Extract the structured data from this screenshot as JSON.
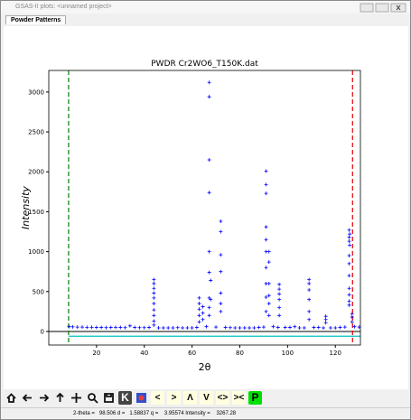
{
  "window": {
    "title": "GSAS-II plots: <unnamed project>",
    "tab": "Powder Patterns",
    "toolbar": [
      "K",
      "<",
      ">",
      "Λ",
      "V",
      "<>",
      "><",
      "P"
    ],
    "status": "2-theta =   98.506 d =   1.58837 q =    3.95574 Intensity =    3267.28"
  },
  "chart_data": {
    "type": "scatter",
    "title": "PWDR Cr2WO6_T150K.dat",
    "xlabel": "2θ",
    "ylabel": "Intensity",
    "xlim": [
      0,
      130.5
    ],
    "ylim": [
      -170,
      3270
    ],
    "xticks": [
      20,
      40,
      60,
      80,
      100,
      120
    ],
    "yticks": [
      0,
      500,
      1000,
      1500,
      2000,
      2500,
      3000
    ],
    "limits": [
      8.3,
      127.2
    ],
    "limit_colors": [
      "#008000",
      "#e00000"
    ],
    "series": [
      {
        "color": "#0000ff",
        "marker": "+",
        "x": [
          8.5,
          10,
          12,
          14,
          16,
          18,
          20,
          22,
          24,
          26,
          28,
          30,
          32,
          34,
          36,
          38,
          40,
          42,
          46,
          48,
          50,
          52,
          54,
          56,
          58,
          60,
          62,
          66,
          70,
          74,
          76,
          78,
          80,
          82,
          84,
          86,
          88,
          90,
          94,
          96,
          99,
          101,
          103,
          105,
          107,
          111,
          113,
          115,
          118,
          120,
          122,
          124,
          128,
          130,
          44,
          44,
          44,
          44,
          44,
          44,
          44,
          44,
          44,
          44,
          63,
          63,
          63,
          63,
          63,
          64.5,
          64.5,
          64.5,
          67.2,
          67.2,
          67.2,
          67.2,
          67.2,
          67.2,
          67.2,
          67.2,
          67.2,
          67.8,
          67.8,
          72,
          72,
          72,
          72,
          72,
          72,
          72,
          91,
          91,
          91,
          91,
          91,
          91,
          91,
          91,
          91,
          91,
          92.2,
          92.2,
          92.2,
          92.2,
          92.2,
          92.2,
          96.5,
          96.5,
          96.5,
          96.5,
          96.5,
          96.5,
          109,
          109,
          109,
          109,
          109,
          109,
          116,
          116,
          116,
          125.8,
          125.8,
          125.8,
          125.8,
          125.8,
          125.8,
          125.8,
          125.8,
          125.8,
          125.8,
          126,
          126,
          127,
          127,
          127
        ],
        "values": [
          60,
          58,
          55,
          55,
          52,
          52,
          50,
          50,
          48,
          50,
          52,
          50,
          48,
          70,
          50,
          48,
          48,
          50,
          45,
          45,
          45,
          45,
          48,
          45,
          45,
          45,
          50,
          60,
          55,
          50,
          48,
          45,
          45,
          45,
          45,
          45,
          50,
          55,
          60,
          50,
          50,
          50,
          60,
          45,
          45,
          50,
          50,
          45,
          45,
          45,
          50,
          55,
          60,
          55,
          650,
          600,
          540,
          480,
          420,
          350,
          270,
          200,
          130,
          80,
          420,
          350,
          280,
          200,
          120,
          310,
          230,
          150,
          3120,
          2940,
          2150,
          1740,
          1000,
          740,
          420,
          300,
          200,
          640,
          400,
          1380,
          1250,
          960,
          750,
          480,
          350,
          250,
          2010,
          1840,
          1730,
          1310,
          1150,
          1000,
          800,
          600,
          430,
          250,
          1000,
          870,
          600,
          450,
          350,
          200,
          590,
          530,
          470,
          400,
          300,
          200,
          650,
          600,
          520,
          400,
          250,
          150,
          190,
          150,
          110,
          1270,
          1180,
          1130,
          950,
          850,
          700,
          540,
          460,
          380,
          330,
          1220,
          1080,
          220,
          180,
          120
        ]
      },
      {
        "color": "#00c0c0",
        "kind": "line",
        "x": [
          8.3,
          130.5
        ],
        "values": [
          -60,
          -60
        ]
      }
    ]
  }
}
